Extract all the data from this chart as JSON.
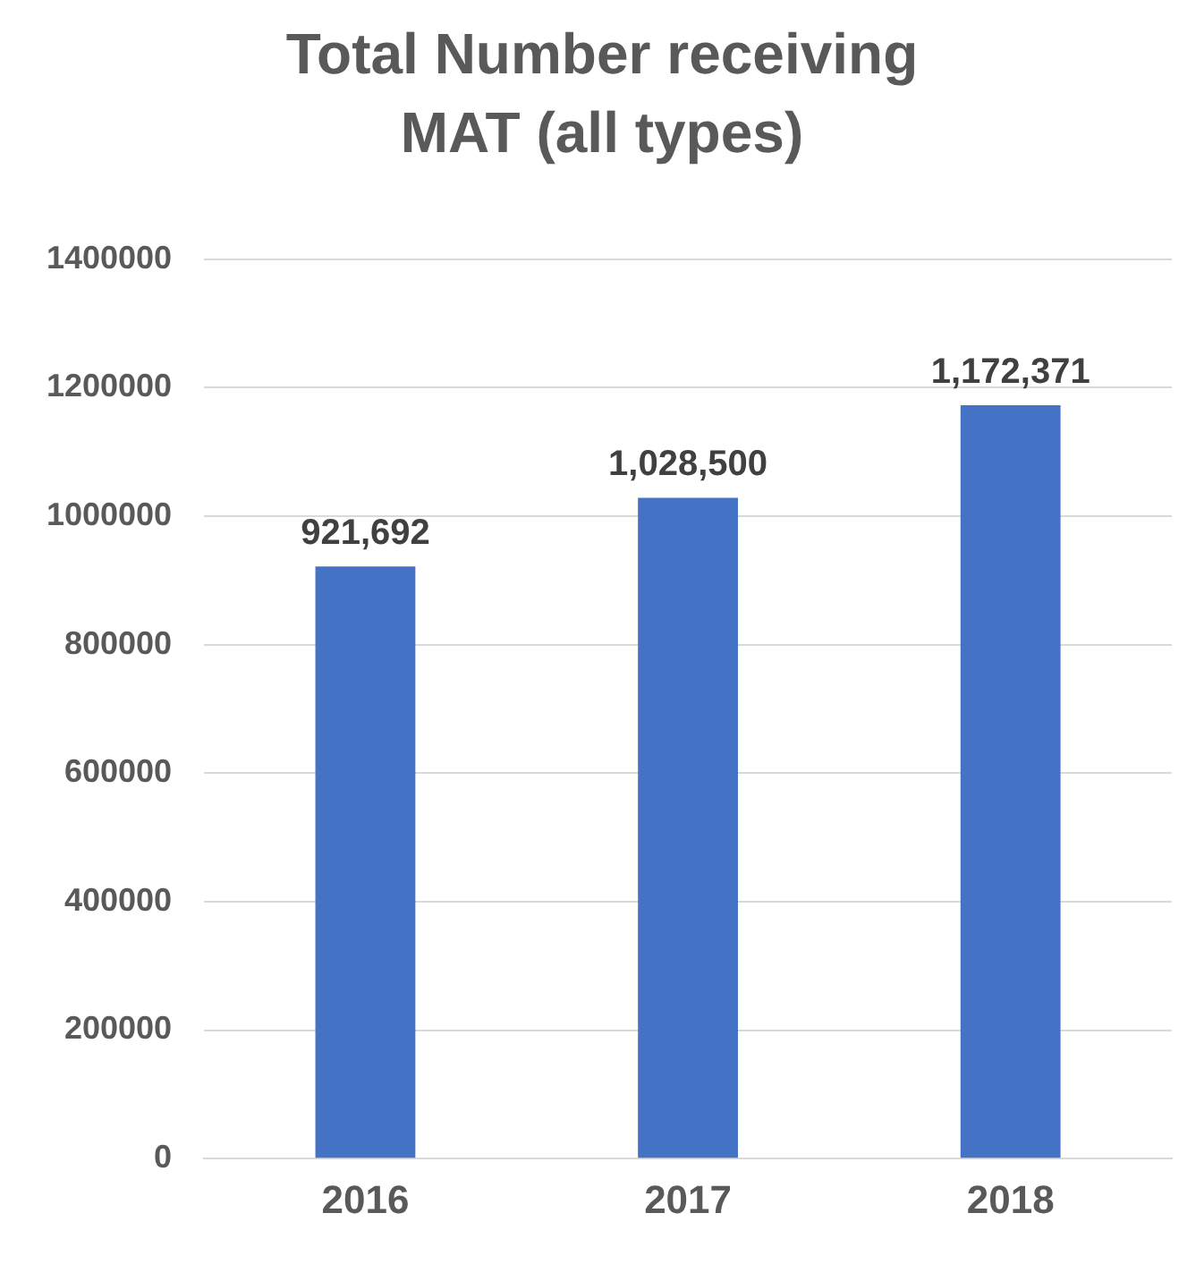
{
  "chart_data": {
    "type": "bar",
    "title": "Total Number receiving MAT (all types)",
    "categories": [
      "2016",
      "2017",
      "2018"
    ],
    "values": [
      921692,
      1028500,
      1172371
    ],
    "value_labels": [
      "921,692",
      "1,028,500",
      "1,172,371"
    ],
    "color": "#4472c4",
    "ylim": [
      0,
      1400000
    ],
    "yticks": [
      0,
      200000,
      400000,
      600000,
      800000,
      1000000,
      1200000,
      1400000
    ],
    "grid": "y"
  }
}
